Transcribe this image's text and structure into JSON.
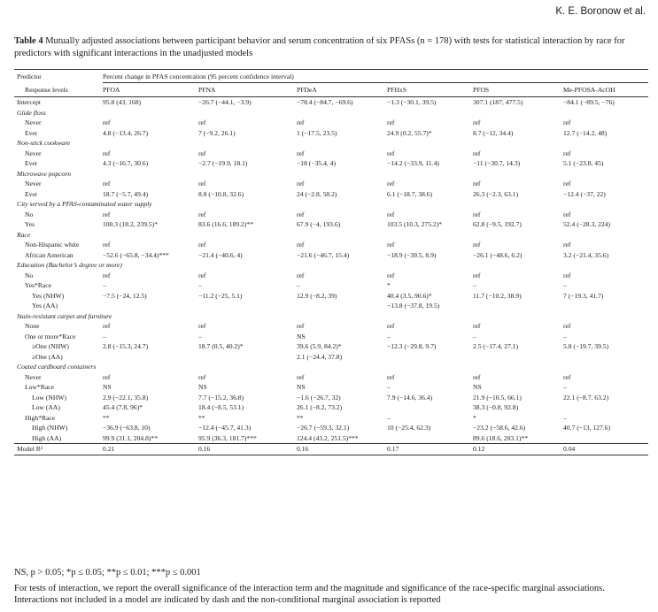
{
  "header": {
    "author": "K. E. Boronow et al."
  },
  "caption": {
    "label": "Table 4",
    "text": "Mutually adjusted associations between participant behavior and serum concentration of six PFASs (n = 178) with tests for statistical interaction by race for predictors with significant interactions in the unadjusted models"
  },
  "table": {
    "predictor_header": "Predictor",
    "span_header": "Percent change in PFAS concentration (95 percent confidence interval)",
    "response_header": "Response levels",
    "columns": [
      "PFOA",
      "PFNA",
      "PFDeA",
      "PFHxS",
      "PFOS",
      "Me-PFOSA-AcOH"
    ],
    "rows": [
      {
        "type": "data",
        "indent": 0,
        "label": "Intercept",
        "cells": [
          "95.8 (43, 168)",
          "−26.7 (−44.1, −3.9)",
          "−78.4 (−84.7, −69.6)",
          "−1.3 (−30.1, 39.5)",
          "307.1 (187, 477.5)",
          "−84.1 (−89.5, −76)"
        ]
      },
      {
        "type": "section",
        "label": "Glide floss"
      },
      {
        "type": "data",
        "indent": 1,
        "label": "Never",
        "cells": [
          "ref",
          "ref",
          "ref",
          "ref",
          "ref",
          "ref"
        ]
      },
      {
        "type": "data",
        "indent": 1,
        "label": "Ever",
        "cells": [
          "4.8 (−13.4, 26.7)",
          "7 (−9.2, 26.1)",
          "1 (−17.5, 23.5)",
          "24.9 (0.2, 55.7)*",
          "8.7 (−12, 34.4)",
          "12.7 (−14.2, 48)"
        ]
      },
      {
        "type": "section",
        "label": "Non-stick cookware"
      },
      {
        "type": "data",
        "indent": 1,
        "label": "Never",
        "cells": [
          "ref",
          "ref",
          "ref",
          "ref",
          "ref",
          "ref"
        ]
      },
      {
        "type": "data",
        "indent": 1,
        "label": "Ever",
        "cells": [
          "4.3 (−16.7, 30.6)",
          "−2.7 (−19.9, 18.1)",
          "−18 (−35.4, 4)",
          "−14.2 (−33.9, 11.4)",
          "−11 (−30.7, 14.3)",
          "5.1 (−23.8, 45)"
        ]
      },
      {
        "type": "section",
        "label": "Microwave popcorn"
      },
      {
        "type": "data",
        "indent": 1,
        "label": "Never",
        "cells": [
          "ref",
          "ref",
          "ref",
          "ref",
          "ref",
          "ref"
        ]
      },
      {
        "type": "data",
        "indent": 1,
        "label": "Ever",
        "cells": [
          "18.7 (−5.7, 49.4)",
          "8.8 (−10.8, 32.6)",
          "24 (−2.8, 58.2)",
          "6.1 (−18.7, 38.6)",
          "26.3 (−2.3, 63.1)",
          "−12.4 (−37, 22)"
        ]
      },
      {
        "type": "section",
        "label": "City served by a PFAS-contaminated water supply"
      },
      {
        "type": "data",
        "indent": 1,
        "label": "No",
        "cells": [
          "ref",
          "ref",
          "ref",
          "ref",
          "ref",
          "ref"
        ]
      },
      {
        "type": "data",
        "indent": 1,
        "label": "Yes",
        "cells": [
          "100.3 (18.2, 239.5)*",
          "83.6 (16.6, 189.2)**",
          "67.9 (−4, 193.6)",
          "103.5 (10.3, 275.2)*",
          "62.8 (−9.5, 192.7)",
          "52.4 (−28.3, 224)"
        ]
      },
      {
        "type": "section",
        "label": "Race"
      },
      {
        "type": "data",
        "indent": 1,
        "label": "Non-Hispanic white",
        "cells": [
          "ref",
          "ref",
          "ref",
          "ref",
          "ref",
          "ref"
        ]
      },
      {
        "type": "data",
        "indent": 1,
        "label": "African American",
        "cells": [
          "−52.6 (−65.8, −34.4)***",
          "−21.4 (−40.6, 4)",
          "−21.6 (−46.7, 15.4)",
          "−18.9 (−39.5, 8.9)",
          "−26.1 (−48.6, 6.2)",
          "3.2 (−21.4, 35.6)"
        ]
      },
      {
        "type": "section",
        "label": "Education (Bachelor’s degree or more)"
      },
      {
        "type": "data",
        "indent": 1,
        "label": "No",
        "cells": [
          "ref",
          "ref",
          "ref",
          "ref",
          "ref",
          "ref"
        ]
      },
      {
        "type": "data",
        "indent": 1,
        "label": "Yes*Race",
        "cells": [
          "–",
          "–",
          "–",
          "*",
          "–",
          "–"
        ]
      },
      {
        "type": "data",
        "indent": 2,
        "label": "Yes (NHW)",
        "cells": [
          "−7.5 (−24, 12.5)",
          "−11.2 (−25, 5.1)",
          "12.9 (−8.2, 39)",
          "40.4 (3.5, 90.6)*",
          "11.7 (−10.2, 38.9)",
          "7 (−19.3, 41.7)"
        ]
      },
      {
        "type": "data",
        "indent": 2,
        "label": "Yes (AA)",
        "cells": [
          "",
          "",
          "",
          "−13.8 (−37.8, 19.5)",
          "",
          ""
        ]
      },
      {
        "type": "section",
        "label": "Stain-resistant carpet and furniture"
      },
      {
        "type": "data",
        "indent": 1,
        "label": "None",
        "cells": [
          "ref",
          "ref",
          "ref",
          "ref",
          "ref",
          "ref"
        ]
      },
      {
        "type": "data",
        "indent": 1,
        "label": "One or more*Race",
        "cells": [
          "–",
          "–",
          "NS",
          "–",
          "–",
          "–"
        ]
      },
      {
        "type": "data",
        "indent": 2,
        "label": "≥One (NHW)",
        "cells": [
          "2.8 (−15.3, 24.7)",
          "18.7 (0.5, 40.2)*",
          "39.6 (5.9, 84.2)*",
          "−12.3 (−29.8, 9.7)",
          "2.5 (−17.4, 27.1)",
          "5.8 (−19.7, 39.5)"
        ]
      },
      {
        "type": "data",
        "indent": 2,
        "label": "≥One (AA)",
        "cells": [
          "",
          "",
          "2.1 (−24.4, 37.8)",
          "",
          "",
          ""
        ]
      },
      {
        "type": "section",
        "label": "Coated cardboard containers"
      },
      {
        "type": "data",
        "indent": 1,
        "label": "Never",
        "cells": [
          "ref",
          "ref",
          "ref",
          "ref",
          "ref",
          "ref"
        ]
      },
      {
        "type": "data",
        "indent": 1,
        "label": "Low*Race",
        "cells": [
          "NS",
          "NS",
          "NS",
          "–",
          "NS",
          "–"
        ]
      },
      {
        "type": "data",
        "indent": 2,
        "label": "Low (NHW)",
        "cells": [
          "2.9 (−22.1, 35.8)",
          "7.7 (−15.2, 36.8)",
          "−1.6 (−26.7, 32)",
          "7.9 (−14.6, 36.4)",
          "21.9 (−10.5, 66.1)",
          "22.1 (−8.7, 63.2)"
        ]
      },
      {
        "type": "data",
        "indent": 2,
        "label": "Low (AA)",
        "cells": [
          "45.4 (7.8, 96)*",
          "18.4 (−8.5, 53.1)",
          "26.1 (−8.2, 73.2)",
          "",
          "38.3 (−0.8, 92.8)",
          ""
        ]
      },
      {
        "type": "data",
        "indent": 1,
        "label": "High*Race",
        "cells": [
          "**",
          "**",
          "**",
          "–",
          "*",
          "–"
        ]
      },
      {
        "type": "data",
        "indent": 2,
        "label": "High (NHW)",
        "cells": [
          "−36.9 (−63.8, 10)",
          "−12.4 (−45.7, 41.3)",
          "−26.7 (−59.3, 32.1)",
          "10 (−25.4, 62.3)",
          "−23.2 (−58.6, 42.6)",
          "40.7 (−13, 127.6)"
        ]
      },
      {
        "type": "data",
        "indent": 2,
        "label": "High (AA)",
        "cells": [
          "99.9 (31.1, 204.8)**",
          "95.9 (36.3, 181.7)***",
          "124.4 (43.2, 251.5)***",
          "",
          "89.6 (18.6, 203.1)**",
          ""
        ]
      },
      {
        "type": "model",
        "indent": 0,
        "label": "Model R²",
        "cells": [
          "0.21",
          "0.16",
          "0.16",
          "0.17",
          "0.12",
          "0.04"
        ]
      }
    ]
  },
  "footnotes": {
    "significance": "NS, p > 0.05; *p ≤ 0.05; **p ≤ 0.01; ***p ≤ 0.001",
    "note": "For tests of interaction, we report the overall significance of the interaction term and the magnitude and significance of the race-specific marginal associations. Interactions not included in a model are indicated by dash and the non-conditional marginal association is reported"
  }
}
